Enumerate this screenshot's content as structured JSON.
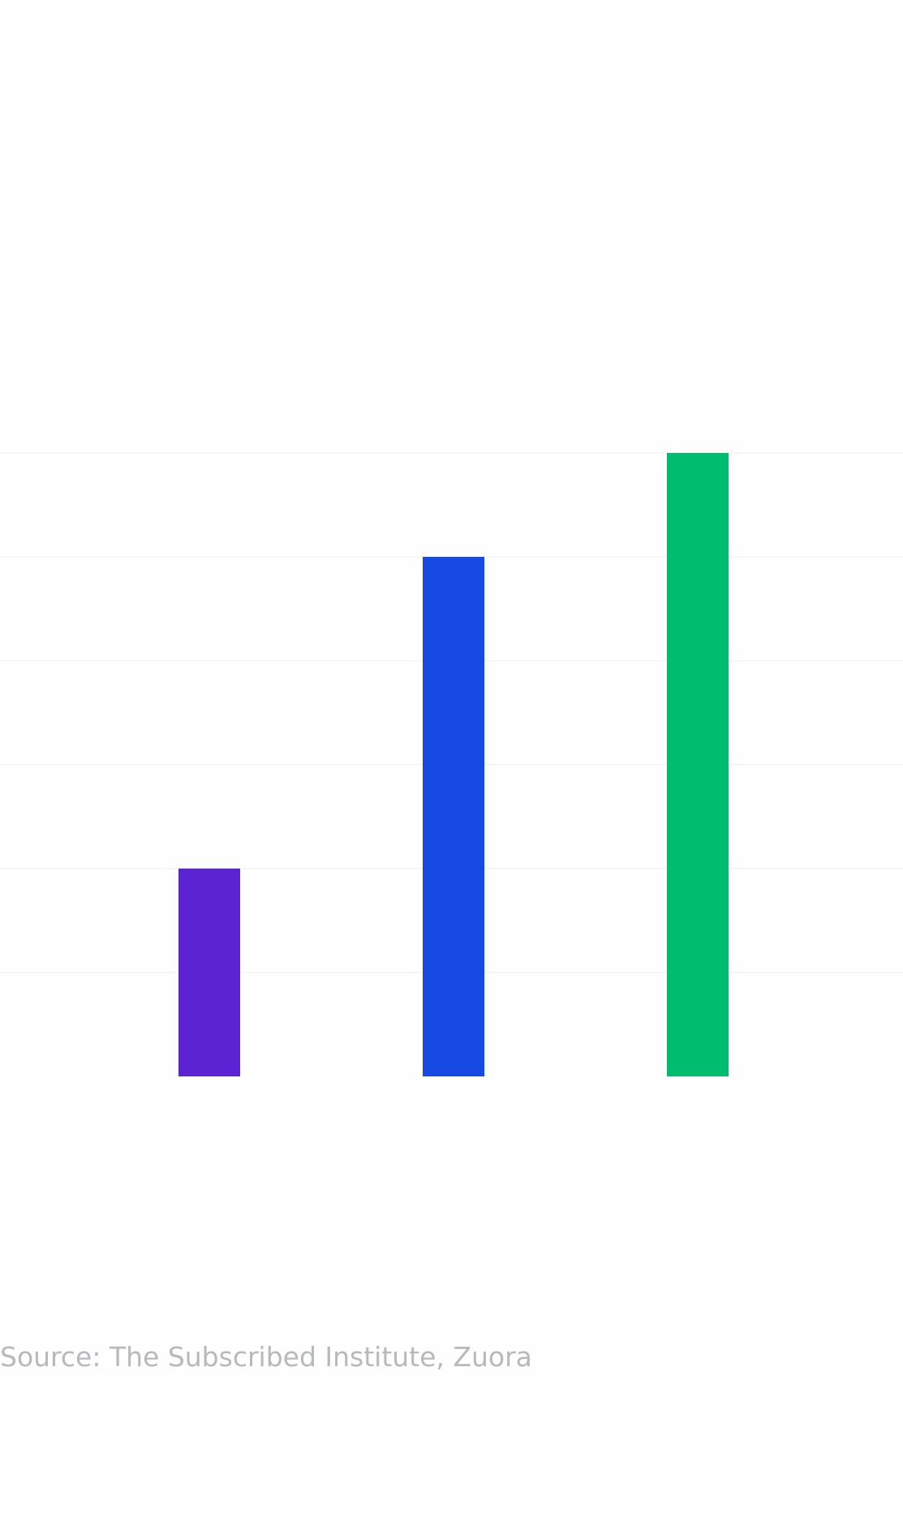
{
  "chart_data": {
    "type": "bar",
    "categories": [
      "",
      "",
      ""
    ],
    "values": [
      2,
      5,
      6
    ],
    "colors": [
      "#5b23d1",
      "#174ae3",
      "#00bc6e"
    ],
    "ylim": [
      0,
      6
    ],
    "grid": true,
    "title": "",
    "xlabel": "",
    "ylabel": ""
  },
  "footer": {
    "source": "Source: The Subscribed Institute, Zuora"
  }
}
